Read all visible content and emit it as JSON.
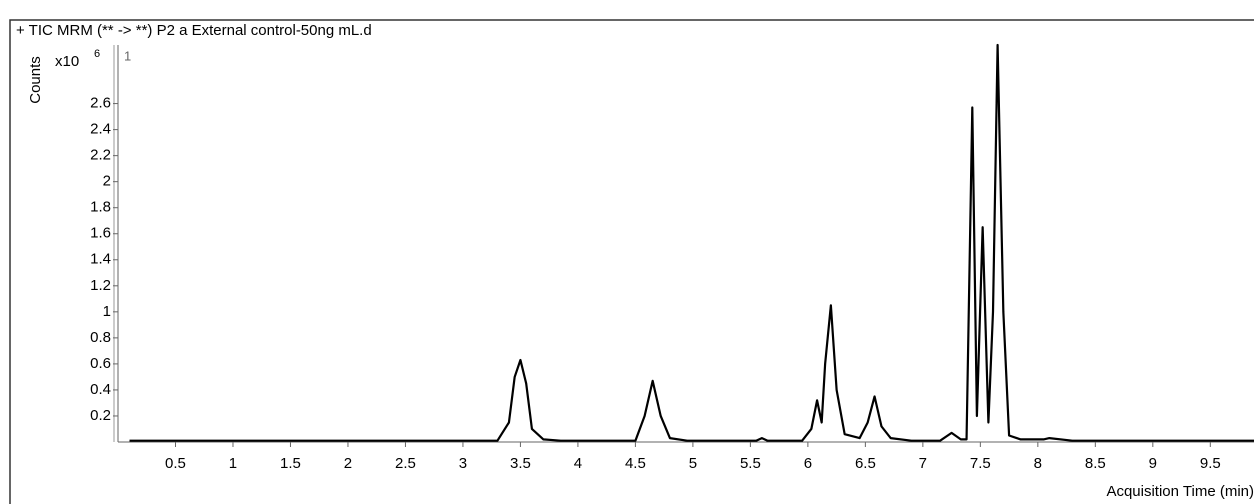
{
  "chart_data": {
    "type": "line",
    "title": "+ TIC MRM (** -> **) P2 a External control-50ng mL.d",
    "panel_label": "1",
    "y_label": "Counts",
    "y_multiplier": {
      "base": "x10",
      "exponent": "6"
    },
    "x_label": "Acquisition Time (min)",
    "x": [
      0.1,
      3.3,
      3.4,
      3.45,
      3.5,
      3.55,
      3.6,
      3.7,
      3.85,
      4.5,
      4.58,
      4.65,
      4.72,
      4.8,
      4.95,
      5.55,
      5.6,
      5.65,
      5.95,
      6.03,
      6.08,
      6.12,
      6.15,
      6.2,
      6.25,
      6.32,
      6.45,
      6.52,
      6.58,
      6.64,
      6.72,
      6.9,
      7.15,
      7.25,
      7.33,
      7.38,
      7.43,
      7.47,
      7.52,
      7.57,
      7.61,
      7.65,
      7.7,
      7.75,
      7.85,
      8.05,
      8.1,
      8.3,
      9.88
    ],
    "series": [
      {
        "name": "TIC",
        "color": "#000000",
        "values": [
          0.01,
          0.01,
          0.15,
          0.5,
          0.63,
          0.45,
          0.1,
          0.02,
          0.01,
          0.01,
          0.2,
          0.47,
          0.2,
          0.03,
          0.01,
          0.01,
          0.03,
          0.01,
          0.01,
          0.1,
          0.32,
          0.15,
          0.6,
          1.05,
          0.4,
          0.06,
          0.03,
          0.15,
          0.35,
          0.12,
          0.03,
          0.01,
          0.01,
          0.07,
          0.02,
          0.02,
          2.57,
          0.2,
          1.65,
          0.15,
          1.0,
          3.05,
          1.0,
          0.05,
          0.02,
          0.02,
          0.03,
          0.01,
          0.01
        ]
      }
    ],
    "xlim": [
      0,
      9.88
    ],
    "ylim": [
      0,
      3.05
    ],
    "xticks": [
      0.5,
      1,
      1.5,
      2,
      2.5,
      3,
      3.5,
      4,
      4.5,
      5,
      5.5,
      6,
      6.5,
      7,
      7.5,
      8,
      8.5,
      9,
      9.5
    ],
    "yticks": [
      0.2,
      0.4,
      0.6,
      0.8,
      1,
      1.2,
      1.4,
      1.6,
      1.8,
      2,
      2.2,
      2.4,
      2.6
    ]
  }
}
